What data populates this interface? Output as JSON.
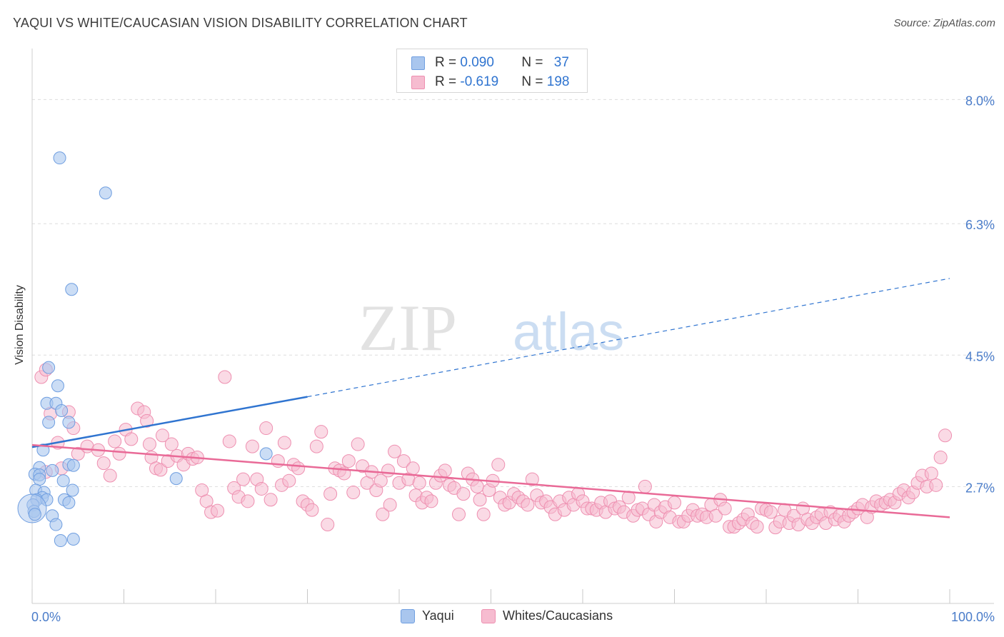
{
  "title": "YAQUI VS WHITE/CAUCASIAN VISION DISABILITY CORRELATION CHART",
  "source": "Source: ZipAtlas.com",
  "watermark": {
    "zip": "ZIP",
    "atlas": "atlas"
  },
  "colors": {
    "blue_fill": "#a9c6ee",
    "blue_stroke": "#6f9ee0",
    "blue_line": "#2f74d0",
    "pink_fill": "#f6bcd0",
    "pink_stroke": "#ee8fb0",
    "pink_line": "#e96a97",
    "tick_label": "#4a7cc9",
    "grid": "#dddddd"
  },
  "legend": {
    "rows": [
      {
        "r_label": "R = ",
        "r_value": "0.090",
        "n_label": "N = ",
        "n_value": "37"
      },
      {
        "r_label": "R = ",
        "r_value": "-0.619",
        "n_label": "N = ",
        "n_value": "198"
      }
    ]
  },
  "chart_data": {
    "type": "scatter",
    "title": "YAQUI VS WHITE/CAUCASIAN VISION DISABILITY CORRELATION CHART",
    "xlabel": "",
    "ylabel": "Vision Disability",
    "xlim": [
      0,
      100
    ],
    "ylim": [
      1.1,
      8.6
    ],
    "x_tick_labels": [
      "0.0%",
      "100.0%"
    ],
    "y_ticks": [
      {
        "value": 2.7,
        "label": "2.7%"
      },
      {
        "value": 4.5,
        "label": "4.5%"
      },
      {
        "value": 6.3,
        "label": "6.3%"
      },
      {
        "value": 8.0,
        "label": "8.0%"
      }
    ],
    "grid": true,
    "legend_position": "top-center",
    "series": [
      {
        "name": "Yaqui",
        "color": "#a9c6ee",
        "trend": {
          "x0": 0,
          "y0": 3.24,
          "x1": 30,
          "y1": 3.93,
          "x_dash_end": 100,
          "y_dash_end": 5.55
        },
        "points": [
          [
            3.0,
            7.2
          ],
          [
            8.0,
            6.72
          ],
          [
            4.3,
            5.4
          ],
          [
            1.8,
            4.33
          ],
          [
            2.8,
            4.08
          ],
          [
            1.6,
            3.84
          ],
          [
            2.6,
            3.84
          ],
          [
            3.2,
            3.74
          ],
          [
            1.8,
            3.58
          ],
          [
            4.0,
            3.58
          ],
          [
            1.2,
            3.2
          ],
          [
            25.5,
            3.15
          ],
          [
            4.0,
            3.0
          ],
          [
            0.8,
            2.96
          ],
          [
            4.5,
            2.99
          ],
          [
            2.2,
            2.92
          ],
          [
            0.3,
            2.87
          ],
          [
            0.8,
            2.86
          ],
          [
            3.4,
            2.78
          ],
          [
            0.8,
            2.8
          ],
          [
            15.7,
            2.81
          ],
          [
            0.4,
            2.65
          ],
          [
            1.3,
            2.62
          ],
          [
            4.4,
            2.65
          ],
          [
            1.1,
            2.55
          ],
          [
            0.5,
            2.52
          ],
          [
            1.6,
            2.52
          ],
          [
            3.5,
            2.52
          ],
          [
            4.0,
            2.48
          ],
          [
            0.1,
            2.45
          ],
          [
            0.2,
            2.36
          ],
          [
            2.2,
            2.3
          ],
          [
            2.6,
            2.18
          ],
          [
            3.1,
            1.96
          ],
          [
            4.5,
            1.98
          ],
          [
            0.0,
            2.4
          ],
          [
            0.3,
            2.32
          ]
        ]
      },
      {
        "name": "Whites/Caucasians",
        "color": "#f6bcd0",
        "trend": {
          "x0": 0,
          "y0": 3.27,
          "x1": 100,
          "y1": 2.28
        },
        "points": [
          [
            1.0,
            4.2
          ],
          [
            1.5,
            4.3
          ],
          [
            2.0,
            3.7
          ],
          [
            4.0,
            3.72
          ],
          [
            4.5,
            3.5
          ],
          [
            2.8,
            3.3
          ],
          [
            3.2,
            2.95
          ],
          [
            5.0,
            3.15
          ],
          [
            6.0,
            3.25
          ],
          [
            7.2,
            3.2
          ],
          [
            7.8,
            3.02
          ],
          [
            8.5,
            2.85
          ],
          [
            9.0,
            3.32
          ],
          [
            9.5,
            3.15
          ],
          [
            10.2,
            3.48
          ],
          [
            10.8,
            3.35
          ],
          [
            11.5,
            3.77
          ],
          [
            12.2,
            3.72
          ],
          [
            12.5,
            3.6
          ],
          [
            12.8,
            3.28
          ],
          [
            13.0,
            3.1
          ],
          [
            13.5,
            2.95
          ],
          [
            14.0,
            2.93
          ],
          [
            14.2,
            3.4
          ],
          [
            14.8,
            3.05
          ],
          [
            15.2,
            3.28
          ],
          [
            15.8,
            3.12
          ],
          [
            16.5,
            3.0
          ],
          [
            17.0,
            3.15
          ],
          [
            17.5,
            3.08
          ],
          [
            18.0,
            3.1
          ],
          [
            18.5,
            2.65
          ],
          [
            19.0,
            2.5
          ],
          [
            19.5,
            2.35
          ],
          [
            20.2,
            2.37
          ],
          [
            21.0,
            4.2
          ],
          [
            21.5,
            3.32
          ],
          [
            22.0,
            2.68
          ],
          [
            22.5,
            2.56
          ],
          [
            23.0,
            2.8
          ],
          [
            23.5,
            2.5
          ],
          [
            24.0,
            3.25
          ],
          [
            24.5,
            2.8
          ],
          [
            25.0,
            2.67
          ],
          [
            25.5,
            3.5
          ],
          [
            26.0,
            2.52
          ],
          [
            26.8,
            3.05
          ],
          [
            27.2,
            2.72
          ],
          [
            27.5,
            3.3
          ],
          [
            28.0,
            2.78
          ],
          [
            28.5,
            3.0
          ],
          [
            29.0,
            2.95
          ],
          [
            29.5,
            2.5
          ],
          [
            30.0,
            2.45
          ],
          [
            30.5,
            2.38
          ],
          [
            31.0,
            3.25
          ],
          [
            31.5,
            3.45
          ],
          [
            32.2,
            2.18
          ],
          [
            32.5,
            2.6
          ],
          [
            33.0,
            2.95
          ],
          [
            33.5,
            2.92
          ],
          [
            34.0,
            2.88
          ],
          [
            34.5,
            3.05
          ],
          [
            35.0,
            2.62
          ],
          [
            35.5,
            3.28
          ],
          [
            36.0,
            2.98
          ],
          [
            36.5,
            2.75
          ],
          [
            37.0,
            2.9
          ],
          [
            37.5,
            2.65
          ],
          [
            38.0,
            2.78
          ],
          [
            38.2,
            2.32
          ],
          [
            38.8,
            2.92
          ],
          [
            39.0,
            2.45
          ],
          [
            39.5,
            3.18
          ],
          [
            40.0,
            2.75
          ],
          [
            40.5,
            3.05
          ],
          [
            41.0,
            2.8
          ],
          [
            41.5,
            2.95
          ],
          [
            41.8,
            2.58
          ],
          [
            42.2,
            2.75
          ],
          [
            42.5,
            2.48
          ],
          [
            43.0,
            2.55
          ],
          [
            43.5,
            2.5
          ],
          [
            44.0,
            2.75
          ],
          [
            44.5,
            2.85
          ],
          [
            45.0,
            2.92
          ],
          [
            45.5,
            2.72
          ],
          [
            46.0,
            2.68
          ],
          [
            46.5,
            2.32
          ],
          [
            47.0,
            2.6
          ],
          [
            47.5,
            2.88
          ],
          [
            48.0,
            2.8
          ],
          [
            48.5,
            2.7
          ],
          [
            48.8,
            2.52
          ],
          [
            49.2,
            2.32
          ],
          [
            49.8,
            2.65
          ],
          [
            50.2,
            2.78
          ],
          [
            50.8,
            3.0
          ],
          [
            51.0,
            2.55
          ],
          [
            51.5,
            2.45
          ],
          [
            52.0,
            2.48
          ],
          [
            52.5,
            2.6
          ],
          [
            53.0,
            2.55
          ],
          [
            53.5,
            2.5
          ],
          [
            54.0,
            2.45
          ],
          [
            54.5,
            2.8
          ],
          [
            55.0,
            2.58
          ],
          [
            55.5,
            2.48
          ],
          [
            56.0,
            2.5
          ],
          [
            56.5,
            2.42
          ],
          [
            57.0,
            2.32
          ],
          [
            57.5,
            2.5
          ],
          [
            58.0,
            2.38
          ],
          [
            58.5,
            2.55
          ],
          [
            59.0,
            2.45
          ],
          [
            59.5,
            2.6
          ],
          [
            60.0,
            2.5
          ],
          [
            60.5,
            2.4
          ],
          [
            61.0,
            2.4
          ],
          [
            61.5,
            2.38
          ],
          [
            62.0,
            2.48
          ],
          [
            62.5,
            2.35
          ],
          [
            63.0,
            2.5
          ],
          [
            63.5,
            2.4
          ],
          [
            64.0,
            2.42
          ],
          [
            64.5,
            2.35
          ],
          [
            65.0,
            2.55
          ],
          [
            65.5,
            2.3
          ],
          [
            66.0,
            2.38
          ],
          [
            66.5,
            2.4
          ],
          [
            66.8,
            2.7
          ],
          [
            67.2,
            2.32
          ],
          [
            67.8,
            2.45
          ],
          [
            68.0,
            2.22
          ],
          [
            68.5,
            2.35
          ],
          [
            69.0,
            2.42
          ],
          [
            69.5,
            2.28
          ],
          [
            70.0,
            2.48
          ],
          [
            70.5,
            2.22
          ],
          [
            71.0,
            2.22
          ],
          [
            71.5,
            2.3
          ],
          [
            72.0,
            2.38
          ],
          [
            72.5,
            2.3
          ],
          [
            73.0,
            2.32
          ],
          [
            73.5,
            2.28
          ],
          [
            74.0,
            2.45
          ],
          [
            74.5,
            2.3
          ],
          [
            75.0,
            2.52
          ],
          [
            75.5,
            2.4
          ],
          [
            76.0,
            2.15
          ],
          [
            76.5,
            2.15
          ],
          [
            77.0,
            2.2
          ],
          [
            77.5,
            2.25
          ],
          [
            78.0,
            2.32
          ],
          [
            78.5,
            2.2
          ],
          [
            79.0,
            2.15
          ],
          [
            79.5,
            2.4
          ],
          [
            80.0,
            2.38
          ],
          [
            80.5,
            2.35
          ],
          [
            81.0,
            2.14
          ],
          [
            81.5,
            2.22
          ],
          [
            82.0,
            2.38
          ],
          [
            82.5,
            2.2
          ],
          [
            83.0,
            2.3
          ],
          [
            83.5,
            2.18
          ],
          [
            84.0,
            2.4
          ],
          [
            84.5,
            2.25
          ],
          [
            85.0,
            2.2
          ],
          [
            85.5,
            2.28
          ],
          [
            86.0,
            2.32
          ],
          [
            86.5,
            2.2
          ],
          [
            87.0,
            2.35
          ],
          [
            87.5,
            2.25
          ],
          [
            88.0,
            2.3
          ],
          [
            88.5,
            2.22
          ],
          [
            89.0,
            2.3
          ],
          [
            89.5,
            2.35
          ],
          [
            90.0,
            2.4
          ],
          [
            90.5,
            2.45
          ],
          [
            91.0,
            2.28
          ],
          [
            91.5,
            2.42
          ],
          [
            92.0,
            2.5
          ],
          [
            92.5,
            2.45
          ],
          [
            93.0,
            2.48
          ],
          [
            93.5,
            2.52
          ],
          [
            94.0,
            2.48
          ],
          [
            94.5,
            2.6
          ],
          [
            95.0,
            2.65
          ],
          [
            95.5,
            2.55
          ],
          [
            96.0,
            2.62
          ],
          [
            96.5,
            2.75
          ],
          [
            97.0,
            2.85
          ],
          [
            97.5,
            2.7
          ],
          [
            98.0,
            2.88
          ],
          [
            98.5,
            2.72
          ],
          [
            99.0,
            3.1
          ],
          [
            99.5,
            3.4
          ],
          [
            1.5,
            2.9
          ]
        ]
      }
    ]
  }
}
